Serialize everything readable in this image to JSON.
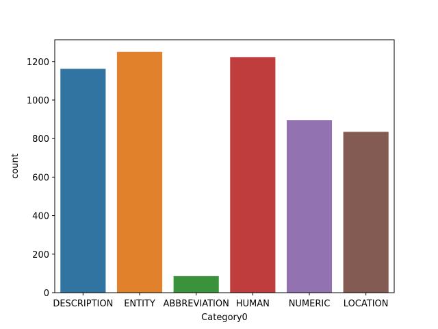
{
  "chart_data": {
    "type": "bar",
    "categories": [
      "DESCRIPTION",
      "ENTITY",
      "ABBREVIATION",
      "HUMAN",
      "NUMERIC",
      "LOCATION"
    ],
    "values": [
      1162,
      1250,
      86,
      1223,
      896,
      835
    ],
    "colors": [
      "#3274a1",
      "#e1812c",
      "#3a923a",
      "#c03d3e",
      "#9372b2",
      "#845b53"
    ],
    "title": "",
    "xlabel": "Category0",
    "ylabel": "count",
    "ylim": [
      0,
      1313
    ],
    "yticks": [
      0,
      200,
      400,
      600,
      800,
      1000,
      1200
    ],
    "grid": false,
    "legend": "none"
  }
}
